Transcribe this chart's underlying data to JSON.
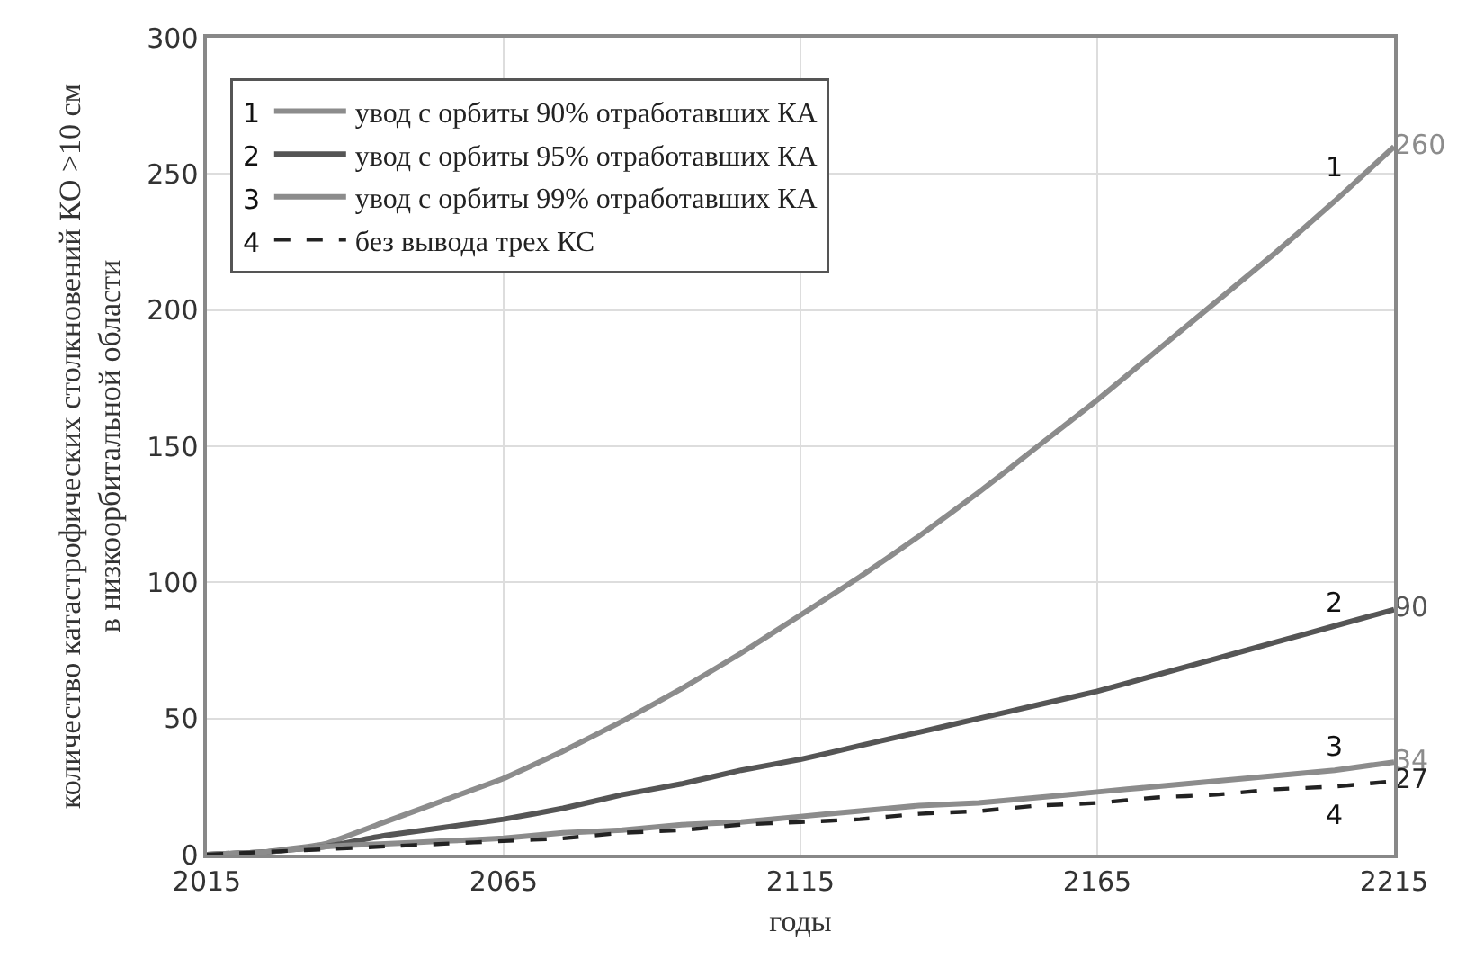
{
  "chart_data": {
    "type": "line",
    "xlabel": "годы",
    "ylabel": "количество катастрофических столкновений КО >10 см\nв низкоорбитальной области",
    "x": [
      2015,
      2025,
      2035,
      2045,
      2055,
      2065,
      2075,
      2085,
      2095,
      2105,
      2115,
      2125,
      2135,
      2145,
      2155,
      2165,
      2175,
      2185,
      2195,
      2205,
      2215
    ],
    "series": [
      {
        "name": "увод с орбиты 90% отработавших КА",
        "color": "#8c8c8c",
        "line_style": "solid",
        "values": [
          0,
          1,
          4,
          12,
          20,
          28,
          38,
          49,
          61,
          74,
          88,
          102,
          117,
          133,
          150,
          167,
          185,
          203,
          221,
          240,
          260
        ],
        "value_labels": [
          null,
          null,
          null,
          null,
          null,
          null,
          null,
          null,
          null,
          null,
          null,
          null,
          null,
          null,
          null,
          null,
          null,
          null,
          null,
          null,
          "260"
        ]
      },
      {
        "name": "увод с орбиты 95% отработавших КА",
        "color": "#555555",
        "line_style": "solid",
        "values": [
          0,
          1,
          3,
          7,
          10,
          13,
          17,
          22,
          26,
          31,
          35,
          40,
          45,
          50,
          55,
          60,
          66,
          72,
          78,
          84,
          90
        ],
        "value_labels": [
          null,
          null,
          null,
          null,
          null,
          null,
          null,
          null,
          null,
          null,
          null,
          null,
          null,
          null,
          null,
          null,
          null,
          null,
          null,
          null,
          "90"
        ]
      },
      {
        "name": "увод с орбиты 99% отработавших КА",
        "color": "#8c8c8c",
        "line_style": "solid",
        "values": [
          0,
          1,
          3,
          4,
          5,
          6,
          8,
          9,
          11,
          12,
          14,
          16,
          18,
          19,
          21,
          23,
          25,
          27,
          29,
          31,
          34
        ],
        "value_labels": [
          null,
          null,
          null,
          null,
          null,
          null,
          null,
          null,
          null,
          null,
          null,
          null,
          null,
          null,
          null,
          null,
          null,
          null,
          null,
          null,
          "34"
        ]
      },
      {
        "name": "без вывода трех КС",
        "color": "#222222",
        "line_style": "dashed",
        "values": [
          0,
          1,
          2,
          3,
          4,
          5,
          6,
          8,
          9,
          11,
          12,
          13,
          15,
          16,
          18,
          19,
          21,
          22,
          24,
          25,
          27
        ],
        "value_labels": [
          null,
          null,
          null,
          null,
          null,
          null,
          null,
          null,
          null,
          null,
          null,
          null,
          null,
          null,
          null,
          null,
          null,
          null,
          null,
          null,
          "27"
        ]
      }
    ],
    "annotations": [
      "1",
      "2",
      "3",
      "4",
      "1",
      "2",
      "3",
      "4"
    ],
    "xlim": [
      2015,
      2215
    ],
    "xticks": [
      2015,
      2065,
      2115,
      2165,
      2215
    ],
    "ylim": [
      0,
      300
    ],
    "yticks": [
      0,
      50,
      100,
      150,
      200,
      250,
      300
    ],
    "grid": true,
    "legend": "top left",
    "marker": "none"
  }
}
